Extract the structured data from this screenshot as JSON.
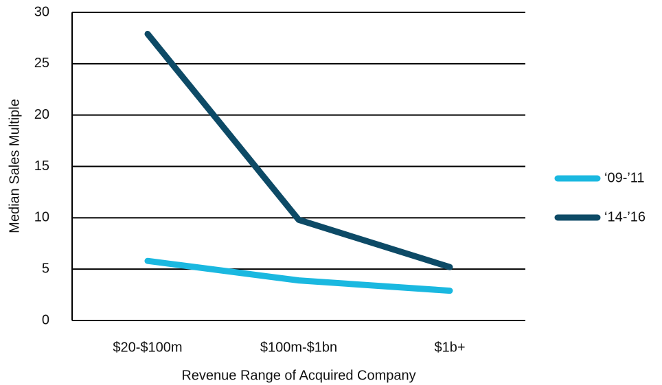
{
  "chart_data": {
    "type": "line",
    "x_label": "Revenue Range of Acquired Company",
    "y_label": "Median Sales Multiple",
    "categories": [
      "$20-$100m",
      "$100m-$1bn",
      "$1b+"
    ],
    "series": [
      {
        "name": "‘09-’11",
        "color": "#1ab8e0",
        "values": [
          5.8,
          3.9,
          2.9
        ]
      },
      {
        "name": "‘14-’16",
        "color": "#0d4a66",
        "values": [
          27.9,
          9.8,
          5.2
        ]
      }
    ],
    "ylim": [
      0,
      30
    ],
    "yticks": [
      0,
      5,
      10,
      15,
      20,
      25,
      30
    ],
    "grid": true
  }
}
